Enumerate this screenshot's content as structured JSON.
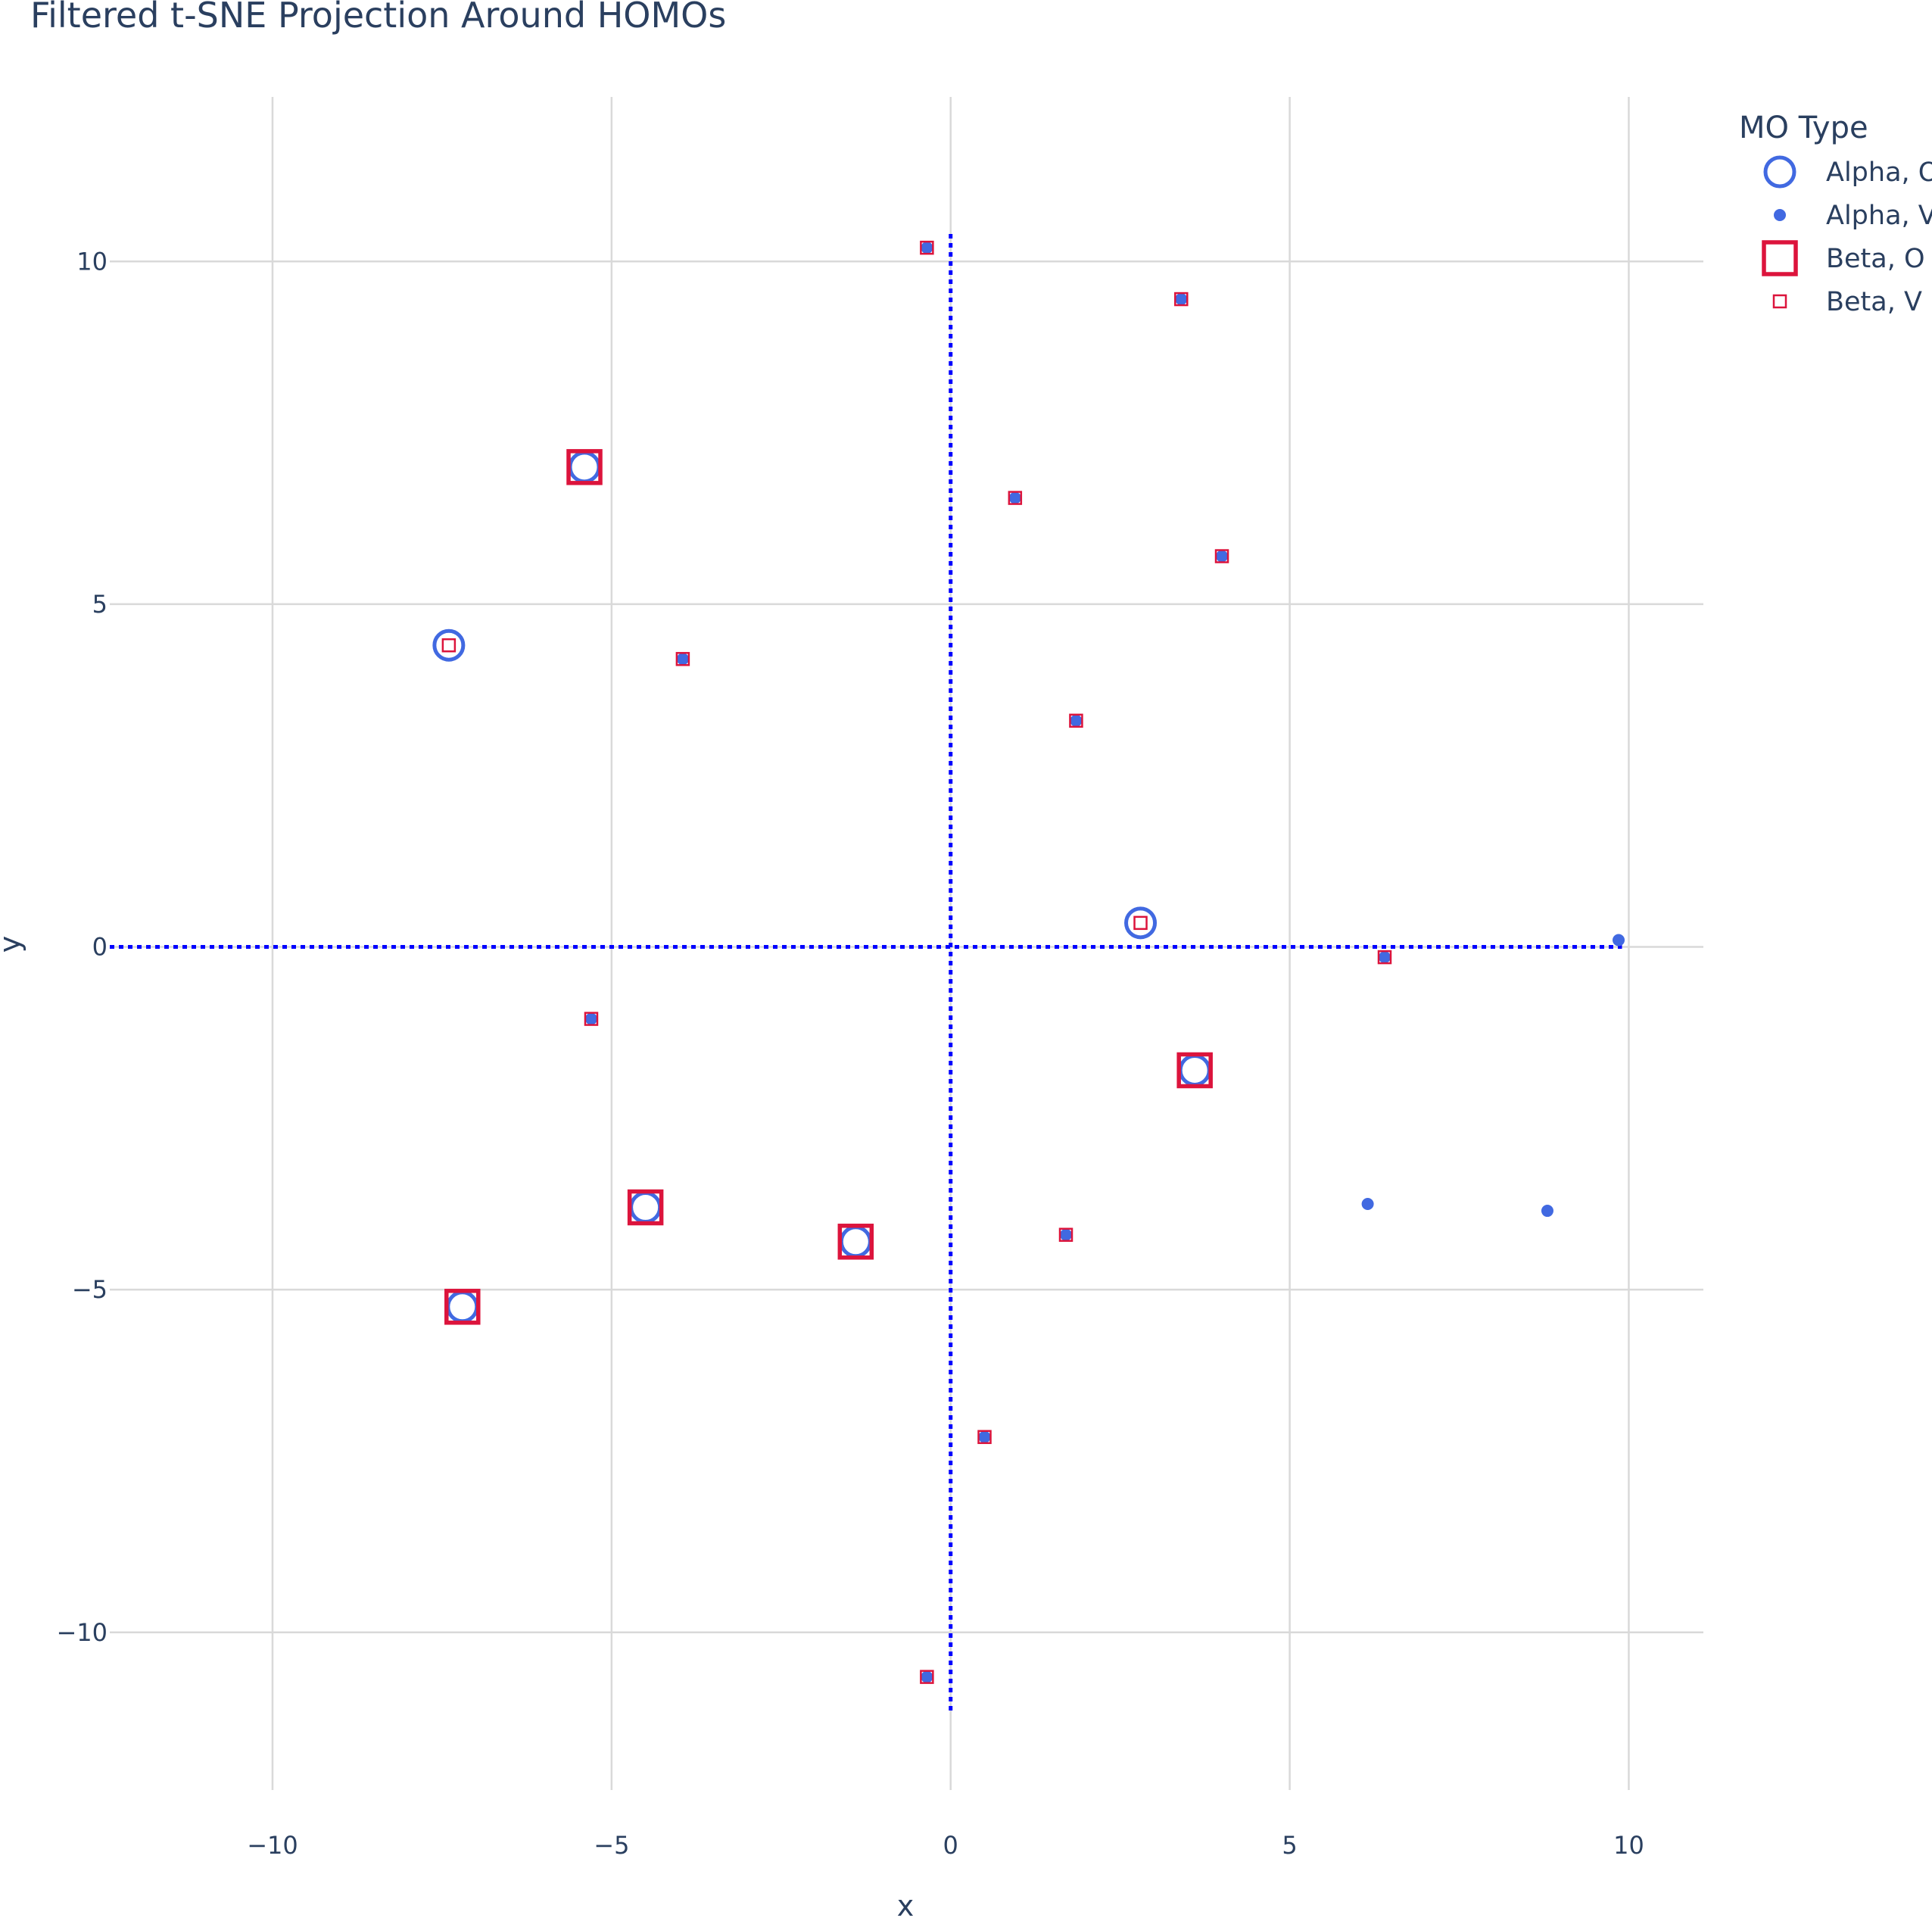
{
  "chart_data": {
    "type": "scatter",
    "title": "Filtered t-SNE Projection Around HOMOs",
    "xlabel": "x",
    "ylabel": "y",
    "xlim": [
      -12.4,
      11.1
    ],
    "ylim": [
      -12.3,
      12.4
    ],
    "xticks": [
      -10,
      -5,
      0,
      5,
      10
    ],
    "yticks": [
      -10,
      -5,
      0,
      5,
      10
    ],
    "xtick_labels": [
      "−10",
      "−5",
      "0",
      "5",
      "10"
    ],
    "ytick_labels": [
      "−10",
      "−5",
      "0",
      "5",
      "10"
    ],
    "grid": true,
    "legend": {
      "title": "MO Type",
      "placement": "top-right outside",
      "entries": [
        "Alpha, O",
        "Alpha, V",
        "Beta, O",
        "Beta, V"
      ]
    },
    "reference_lines": [
      {
        "orientation": "vertical",
        "x": 0,
        "y_range": [
          -11.2,
          10.4
        ],
        "style": "dotted",
        "color": "#0000ff"
      },
      {
        "orientation": "horizontal",
        "y": 0,
        "x_range": [
          -12.4,
          9.9
        ],
        "style": "dotted",
        "color": "#0000ff"
      }
    ],
    "series": [
      {
        "name": "Alpha, O",
        "marker": "circle-open",
        "size": "large",
        "color": "#4169e1",
        "points": [
          {
            "x": -7.4,
            "y": 4.4
          },
          {
            "x": -5.4,
            "y": 7.0
          },
          {
            "x": -7.2,
            "y": -5.25
          },
          {
            "x": -4.5,
            "y": -3.8
          },
          {
            "x": -1.4,
            "y": -4.3
          },
          {
            "x": 2.8,
            "y": 0.35
          },
          {
            "x": 3.6,
            "y": -1.8
          }
        ]
      },
      {
        "name": "Alpha, V",
        "marker": "circle",
        "size": "small",
        "color": "#4169e1",
        "points": [
          {
            "x": -0.35,
            "y": 10.2
          },
          {
            "x": 3.4,
            "y": 9.45
          },
          {
            "x": 0.95,
            "y": 6.55
          },
          {
            "x": 4.0,
            "y": 5.7
          },
          {
            "x": -3.95,
            "y": 4.2
          },
          {
            "x": 1.85,
            "y": 3.3
          },
          {
            "x": 9.85,
            "y": 0.1
          },
          {
            "x": 6.4,
            "y": -0.15
          },
          {
            "x": -5.3,
            "y": -1.05
          },
          {
            "x": 6.15,
            "y": -3.75
          },
          {
            "x": 8.8,
            "y": -3.85
          },
          {
            "x": 1.7,
            "y": -4.2
          },
          {
            "x": 0.5,
            "y": -7.15
          },
          {
            "x": -0.35,
            "y": -10.65
          }
        ]
      },
      {
        "name": "Beta, O",
        "marker": "square-open",
        "size": "large",
        "color": "#dc143c",
        "points": [
          {
            "x": -5.4,
            "y": 7.0
          },
          {
            "x": -7.2,
            "y": -5.25
          },
          {
            "x": -4.5,
            "y": -3.8
          },
          {
            "x": -1.4,
            "y": -4.3
          },
          {
            "x": 3.6,
            "y": -1.8
          }
        ]
      },
      {
        "name": "Beta, V",
        "marker": "square-open",
        "size": "small",
        "color": "#dc143c",
        "points": [
          {
            "x": -0.35,
            "y": 10.2
          },
          {
            "x": 3.4,
            "y": 9.45
          },
          {
            "x": 0.95,
            "y": 6.55
          },
          {
            "x": 4.0,
            "y": 5.7
          },
          {
            "x": -3.95,
            "y": 4.2
          },
          {
            "x": 1.85,
            "y": 3.3
          },
          {
            "x": -7.4,
            "y": 4.4
          },
          {
            "x": 2.8,
            "y": 0.35
          },
          {
            "x": 6.4,
            "y": -0.15
          },
          {
            "x": -5.3,
            "y": -1.05
          },
          {
            "x": 1.7,
            "y": -4.2
          },
          {
            "x": 0.5,
            "y": -7.15
          },
          {
            "x": -0.35,
            "y": -10.65
          }
        ]
      }
    ]
  }
}
